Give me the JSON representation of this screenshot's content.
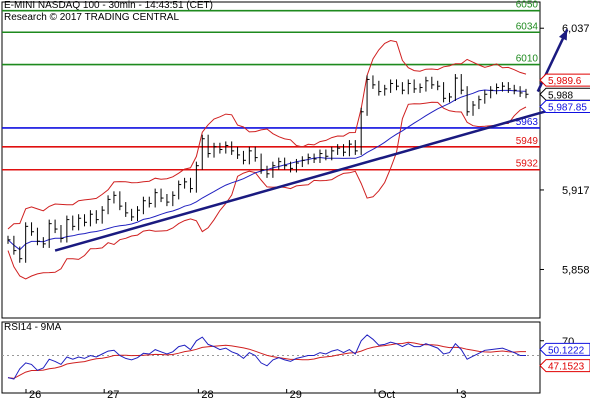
{
  "header": {
    "title": "E-MINI NASDAQ 100 - 30min - 14:43:51 (CET)",
    "copyright": "Research © 2017 TRADING CENTRAL"
  },
  "colors": {
    "resistance": "#1e8a1e",
    "support_blue": "#1010e0",
    "support_red": "#e01010",
    "trend": "#1a1a80",
    "price": "#000000",
    "bands": "#d02020",
    "ma": "#2020c0",
    "badge_red": "#e00000",
    "badge_blue": "#1010e0",
    "badge_black": "#000000"
  },
  "chart_data": [
    {
      "type": "line",
      "title": "E-MINI NASDAQ 100 - 30min",
      "x_ticks": [
        "26",
        "27",
        "28",
        "29",
        "Oct",
        "3"
      ],
      "y_ticks": [
        "6,037",
        "5,917",
        "5,858"
      ],
      "ylim": [
        5822,
        6052
      ],
      "levels": [
        {
          "label": "6050",
          "value": 6050,
          "kind": "resistance"
        },
        {
          "label": "6034",
          "value": 6034,
          "kind": "resistance"
        },
        {
          "label": "6010",
          "value": 6010,
          "kind": "resistance"
        },
        {
          "label": "5963",
          "value": 5963,
          "kind": "support_blue"
        },
        {
          "label": "5949",
          "value": 5949,
          "kind": "support_red"
        },
        {
          "label": "5932",
          "value": 5932,
          "kind": "support_red"
        }
      ],
      "price_badges": [
        {
          "label": "5,989.6",
          "value": 5989.6,
          "kind": "badge_red"
        },
        {
          "label": "5,988",
          "value": 5988,
          "kind": "badge_black"
        },
        {
          "label": "5,987.85",
          "value": 5987.85,
          "kind": "badge_blue"
        }
      ],
      "price": [
        5880,
        5872,
        5866,
        5890,
        5886,
        5879,
        5877,
        5892,
        5888,
        5881,
        5895,
        5890,
        5896,
        5893,
        5899,
        5895,
        5902,
        5910,
        5913,
        5905,
        5900,
        5897,
        5902,
        5909,
        5907,
        5915,
        5911,
        5908,
        5913,
        5921,
        5923,
        5918,
        5935,
        5955,
        5944,
        5949,
        5947,
        5950,
        5946,
        5943,
        5939,
        5946,
        5941,
        5932,
        5929,
        5935,
        5938,
        5935,
        5933,
        5937,
        5939,
        5941,
        5940,
        5944,
        5942,
        5946,
        5948,
        5945,
        5951,
        5946,
        5975,
        5999,
        5995,
        5990,
        5992,
        5996,
        5994,
        5991,
        5996,
        5992,
        5993,
        5998,
        5995,
        5994,
        5985,
        5986,
        6000,
        5991,
        5975,
        5980,
        5984,
        5988,
        5991,
        5993,
        5994,
        5992,
        5991,
        5989,
        5988
      ],
      "trendline": [
        [
          8,
          5872
        ],
        [
          100,
          5986
        ]
      ],
      "forecast_arrow": [
        [
          90,
          5990
        ],
        [
          95,
          6036
        ]
      ],
      "rsi": {
        "label": "RSI14 - 9MA",
        "y_ticks": [
          "70"
        ],
        "ylim": [
          10,
          90
        ],
        "badges": [
          {
            "label": "50.1222",
            "value": 50.12,
            "kind": "badge_blue"
          },
          {
            "label": "47.1523",
            "value": 47.15,
            "kind": "badge_red"
          }
        ],
        "values": [
          20,
          18,
          32,
          40,
          38,
          30,
          33,
          45,
          42,
          38,
          48,
          45,
          48,
          46,
          50,
          48,
          52,
          56,
          57,
          50,
          46,
          44,
          47,
          53,
          52,
          58,
          55,
          52,
          55,
          62,
          64,
          58,
          70,
          75,
          65,
          62,
          58,
          60,
          55,
          52,
          46,
          54,
          50,
          40,
          36,
          44,
          47,
          44,
          42,
          46,
          48,
          50,
          50,
          54,
          52,
          56,
          58,
          54,
          58,
          52,
          70,
          78,
          72,
          64,
          65,
          68,
          66,
          62,
          66,
          62,
          62,
          66,
          63,
          60,
          52,
          54,
          66,
          58,
          45,
          49,
          53,
          57,
          58,
          59,
          60,
          57,
          54,
          50,
          50
        ]
      }
    }
  ]
}
